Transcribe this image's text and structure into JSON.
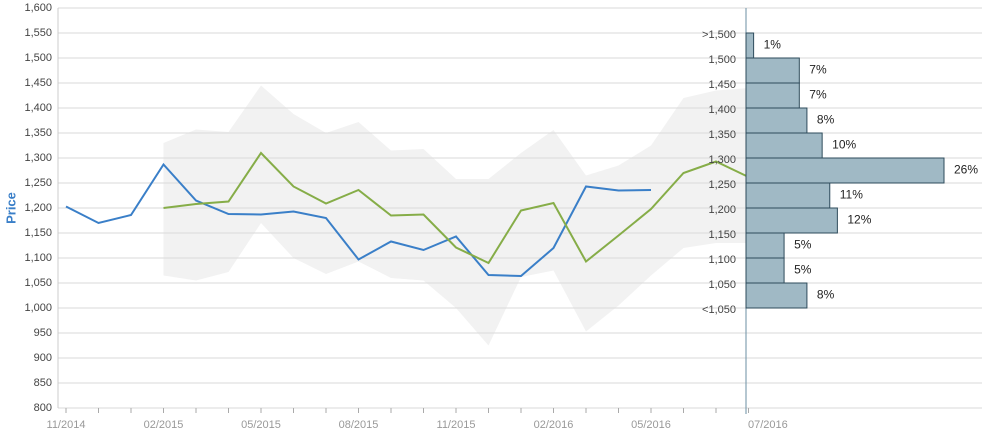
{
  "chart_data": [
    {
      "type": "line",
      "ylabel": "Price",
      "categories": [
        "11/2014",
        null,
        null,
        "02/2015",
        null,
        null,
        "05/2015",
        null,
        null,
        "08/2015",
        null,
        null,
        "11/2015",
        null,
        null,
        "02/2016",
        null,
        null,
        "05/2016",
        null,
        null,
        "07/2016"
      ],
      "ylim": [
        800,
        1600
      ],
      "yticks": [
        {
          "value": 800,
          "label": "800"
        },
        {
          "value": 850,
          "label": "850"
        },
        {
          "value": 900,
          "label": "900"
        },
        {
          "value": 950,
          "label": "950"
        },
        {
          "value": 1000,
          "label": "1,000"
        },
        {
          "value": 1050,
          "label": "1,050"
        },
        {
          "value": 1100,
          "label": "1,100"
        },
        {
          "value": 1150,
          "label": "1,150"
        },
        {
          "value": 1200,
          "label": "1,200"
        },
        {
          "value": 1250,
          "label": "1,250"
        },
        {
          "value": 1300,
          "label": "1,300"
        },
        {
          "value": 1350,
          "label": "1,350"
        },
        {
          "value": 1400,
          "label": "1,400"
        },
        {
          "value": 1450,
          "label": "1,450"
        },
        {
          "value": 1500,
          "label": "1,500"
        },
        {
          "value": 1550,
          "label": "1,550"
        },
        {
          "value": 1600,
          "label": "1,600"
        }
      ],
      "grid": true,
      "band": {
        "color": "#f2f2f2",
        "upper": [
          null,
          null,
          null,
          1330,
          1357,
          1352,
          1445,
          1388,
          1350,
          1372,
          1315,
          1318,
          1258,
          1258,
          1310,
          1356,
          1265,
          1285,
          1325,
          1420,
          1435,
          1440
        ],
        "lower": [
          null,
          null,
          null,
          1065,
          1055,
          1072,
          1170,
          1100,
          1068,
          1093,
          1060,
          1055,
          1000,
          925,
          1062,
          1075,
          953,
          1005,
          1065,
          1120,
          1130,
          1130
        ]
      },
      "series": [
        {
          "color": "#3a7fc8",
          "values": [
            1203,
            1170,
            1186,
            1287,
            1215,
            1188,
            1187,
            1193,
            1180,
            1097,
            1133,
            1116,
            1143,
            1066,
            1064,
            1120,
            1243,
            1235,
            1236,
            null,
            null,
            null
          ]
        },
        {
          "color": "#86ad48",
          "values": [
            null,
            null,
            null,
            1200,
            1208,
            1213,
            1310,
            1243,
            1209,
            1236,
            1185,
            1187,
            1121,
            1090,
            1195,
            1210,
            1093,
            1145,
            1198,
            1270,
            1293,
            1262
          ]
        }
      ]
    },
    {
      "type": "histogram",
      "orientation": "horizontal",
      "color": "#a0b9c5",
      "edge_color": "#2e4b5b",
      "xlim": [
        0,
        26
      ],
      "bins": [
        {
          "value": 1550,
          "label": ">1,500"
        },
        {
          "value": 1500,
          "label": "1,500"
        },
        {
          "value": 1450,
          "label": "1,450"
        },
        {
          "value": 1400,
          "label": "1,400"
        },
        {
          "value": 1350,
          "label": "1,350"
        },
        {
          "value": 1300,
          "label": "1,300"
        },
        {
          "value": 1250,
          "label": "1,250"
        },
        {
          "value": 1200,
          "label": "1,200"
        },
        {
          "value": 1150,
          "label": "1,150"
        },
        {
          "value": 1100,
          "label": "1,100"
        },
        {
          "value": 1050,
          "label": "1,050"
        },
        {
          "value": 1000,
          "label": "<1,050"
        }
      ],
      "values": [
        1,
        7,
        7,
        8,
        10,
        26,
        11,
        12,
        5,
        5,
        8
      ],
      "value_labels": [
        "1%",
        "7%",
        "7%",
        "8%",
        "10%",
        "26%",
        "11%",
        "12%",
        "5%",
        "5%",
        "8%"
      ]
    }
  ]
}
